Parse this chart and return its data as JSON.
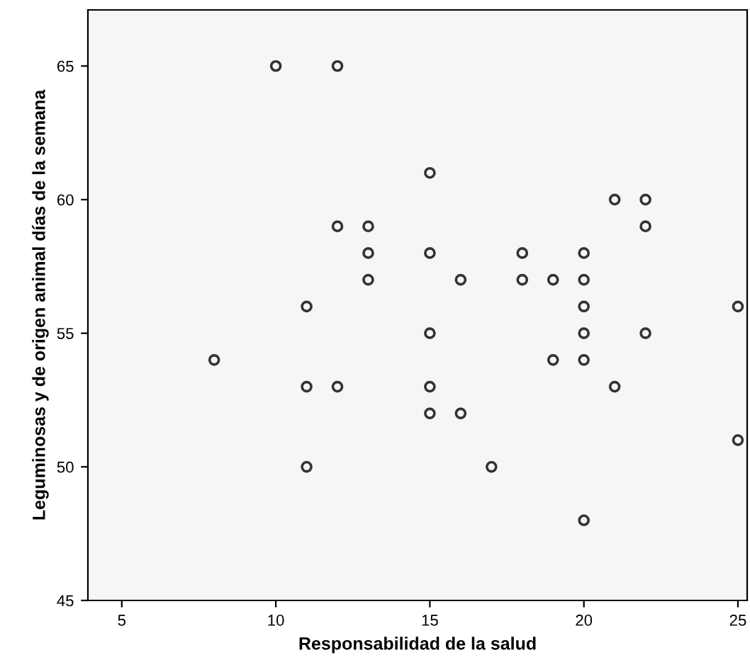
{
  "chart_data": {
    "type": "scatter",
    "xlabel": "Responsabilidad de la salud",
    "ylabel": "Leguminosas y de origen animal días de la semana",
    "x": [
      10,
      12,
      15,
      12,
      13,
      21,
      22,
      22,
      13,
      15,
      18,
      20,
      13,
      16,
      18,
      19,
      20,
      11,
      20,
      25,
      15,
      20,
      22,
      8,
      19,
      20,
      11,
      12,
      15,
      21,
      15,
      16,
      25,
      11,
      17,
      20
    ],
    "values": [
      65,
      65,
      61,
      59,
      59,
      60,
      60,
      59,
      58,
      58,
      58,
      58,
      57,
      57,
      57,
      57,
      57,
      56,
      56,
      56,
      55,
      55,
      55,
      54,
      54,
      54,
      53,
      53,
      53,
      53,
      52,
      52,
      51,
      50,
      50,
      48
    ],
    "color": "#333333",
    "marker": "circle",
    "xlim": [
      3.9,
      25.3
    ],
    "xticks": [
      5,
      10,
      15,
      20,
      25
    ],
    "ylim": [
      45,
      67.1
    ],
    "yticks": [
      45,
      50,
      55,
      60,
      65
    ]
  }
}
